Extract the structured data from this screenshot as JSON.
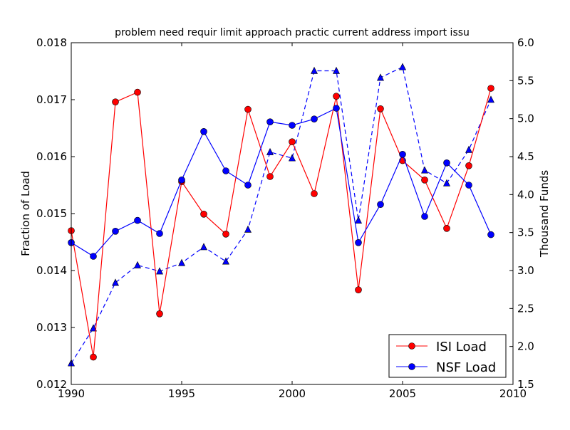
{
  "chart_data": {
    "type": "line",
    "title": "problem need requir limit approach practic current address import issu",
    "xlabel": "",
    "ylabel": "Fraction of Load",
    "y2label": "Thousand Funds",
    "xlim": [
      1990,
      2010
    ],
    "ylim": [
      0.012,
      0.018
    ],
    "y2lim": [
      1.5,
      6.0
    ],
    "xticks": [
      "1990",
      "1995",
      "2000",
      "2005",
      "2010"
    ],
    "yticks": [
      "0.012",
      "0.013",
      "0.014",
      "0.015",
      "0.016",
      "0.017",
      "0.018"
    ],
    "y2ticks": [
      "1.5",
      "2.0",
      "2.5",
      "3.0",
      "3.5",
      "4.0",
      "4.5",
      "5.0",
      "5.5",
      "6.0"
    ],
    "legend_placement": "bottom-right",
    "x": [
      1990,
      1991,
      1992,
      1993,
      1994,
      1995,
      1996,
      1997,
      1998,
      1999,
      2000,
      2001,
      2002,
      2003,
      2004,
      2005,
      2006,
      2007,
      2008,
      2009
    ],
    "series": [
      {
        "name": "ISI Load",
        "axis": "left",
        "color": "#ff0000",
        "marker": "circle",
        "linestyle": "solid",
        "values": [
          0.0147,
          0.01248,
          0.01696,
          0.01713,
          0.01324,
          0.01556,
          0.01499,
          0.01464,
          0.01683,
          0.01565,
          0.01626,
          0.01535,
          0.01706,
          0.01366,
          0.01684,
          0.01593,
          0.01559,
          0.01474,
          0.01584,
          0.0172
        ]
      },
      {
        "name": "NSF Load",
        "axis": "left",
        "color": "#0000ff",
        "marker": "circle",
        "linestyle": "solid",
        "values": [
          0.01449,
          0.01425,
          0.01469,
          0.01488,
          0.01465,
          0.01559,
          0.01644,
          0.01575,
          0.0155,
          0.01661,
          0.01655,
          0.01666,
          0.01685,
          0.01449,
          0.01516,
          0.01604,
          0.01495,
          0.01589,
          0.0155,
          0.01463
        ]
      },
      {
        "name": "Thousand Funds",
        "axis": "right",
        "color": "#0000ff",
        "marker": "triangle",
        "linestyle": "dashed",
        "values": [
          1.78,
          2.24,
          2.84,
          3.07,
          2.99,
          3.1,
          3.31,
          3.12,
          3.54,
          4.56,
          4.48,
          5.63,
          5.63,
          3.66,
          5.54,
          5.68,
          4.32,
          4.15,
          4.59,
          5.25
        ]
      }
    ]
  }
}
